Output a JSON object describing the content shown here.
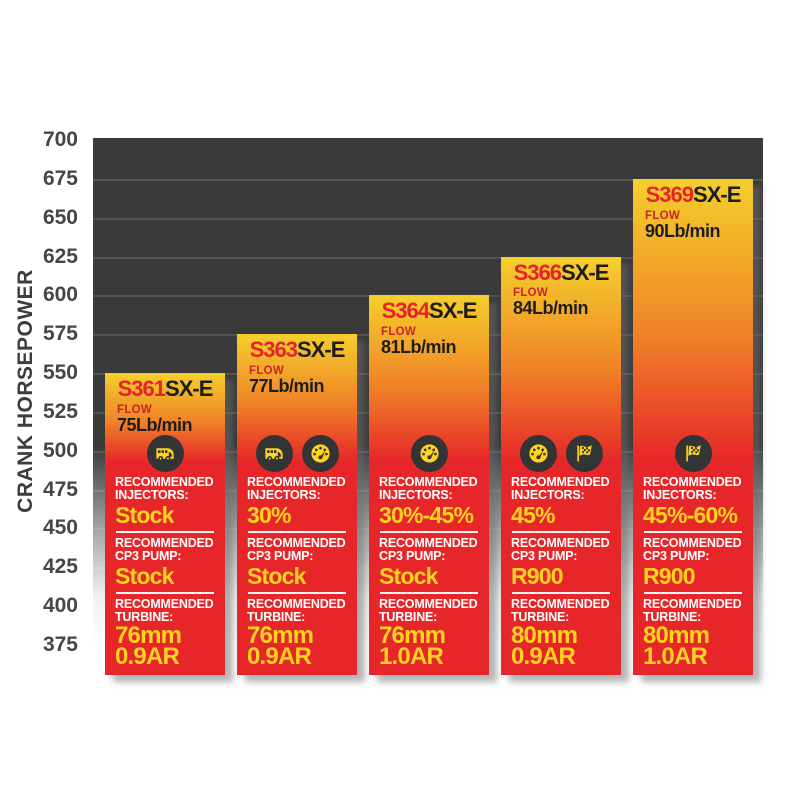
{
  "y_axis": {
    "title": "CRANK HORSEPOWER",
    "ticks": [
      700,
      675,
      650,
      625,
      600,
      575,
      550,
      525,
      500,
      475,
      450,
      425,
      400,
      375
    ]
  },
  "colors": {
    "bar_yellow": "#f4d02c",
    "bar_orange": "#f08227",
    "bar_red": "#e62629",
    "value_yellow": "#ffd41e",
    "model_red": "#e8222a",
    "model_dark": "#1d1d1b",
    "label_white": "#ffffff",
    "plot_dark": "#3a3a3a",
    "icon_circle": "#333436"
  },
  "chart_data": {
    "type": "bar",
    "ylabel": "CRANK HORSEPOWER",
    "ylim": [
      375,
      700
    ],
    "yticks": [
      700,
      675,
      650,
      625,
      600,
      575,
      550,
      525,
      500,
      475,
      450,
      425,
      400,
      375
    ],
    "grid": true,
    "legend": "none",
    "categories": [
      "S361SX-E",
      "S363SX-E",
      "S364SX-E",
      "S366SX-E",
      "S369SX-E"
    ],
    "values": [
      550,
      575,
      600,
      625,
      675
    ],
    "bars": [
      {
        "prefix": "S361",
        "suffix": "SX-E",
        "flow_label": "FLOW",
        "flow": "75Lb/min",
        "crank_hp": 550,
        "icons": [
          "rv-icon"
        ],
        "injectors_label": "RECOMMENDED INJECTORS:",
        "injectors": "Stock",
        "cp3_label": "RECOMMENDED CP3 PUMP:",
        "cp3": "Stock",
        "turbine_label": "RECOMMENDED TURBINE:",
        "turbine": [
          "76mm",
          "0.9AR"
        ]
      },
      {
        "prefix": "S363",
        "suffix": "SX-E",
        "flow_label": "FLOW",
        "flow": "77Lb/min",
        "crank_hp": 575,
        "icons": [
          "rv-icon",
          "gauge-icon"
        ],
        "injectors_label": "RECOMMENDED INJECTORS:",
        "injectors": "30%",
        "cp3_label": "RECOMMENDED CP3 PUMP:",
        "cp3": "Stock",
        "turbine_label": "RECOMMENDED TURBINE:",
        "turbine": [
          "76mm",
          "0.9AR"
        ]
      },
      {
        "prefix": "S364",
        "suffix": "SX-E",
        "flow_label": "FLOW",
        "flow": "81Lb/min",
        "crank_hp": 600,
        "icons": [
          "gauge-icon"
        ],
        "injectors_label": "RECOMMENDED INJECTORS:",
        "injectors": "30%-45%",
        "cp3_label": "RECOMMENDED CP3 PUMP:",
        "cp3": "Stock",
        "turbine_label": "RECOMMENDED TURBINE:",
        "turbine": [
          "76mm",
          "1.0AR"
        ]
      },
      {
        "prefix": "S366",
        "suffix": "SX-E",
        "flow_label": "FLOW",
        "flow": "84Lb/min",
        "crank_hp": 625,
        "icons": [
          "gauge-icon",
          "flag-icon"
        ],
        "injectors_label": "RECOMMENDED INJECTORS:",
        "injectors": "45%",
        "cp3_label": "RECOMMENDED CP3 PUMP:",
        "cp3": "R900",
        "turbine_label": "RECOMMENDED TURBINE:",
        "turbine": [
          "80mm",
          "0.9AR"
        ]
      },
      {
        "prefix": "S369",
        "suffix": "SX-E",
        "flow_label": "FLOW",
        "flow": "90Lb/min",
        "crank_hp": 675,
        "icons": [
          "flag-icon"
        ],
        "injectors_label": "RECOMMENDED INJECTORS:",
        "injectors": "45%-60%",
        "cp3_label": "RECOMMENDED CP3 PUMP:",
        "cp3": "R900",
        "turbine_label": "RECOMMENDED TURBINE:",
        "turbine": [
          "80mm",
          "1.0AR"
        ]
      }
    ]
  }
}
